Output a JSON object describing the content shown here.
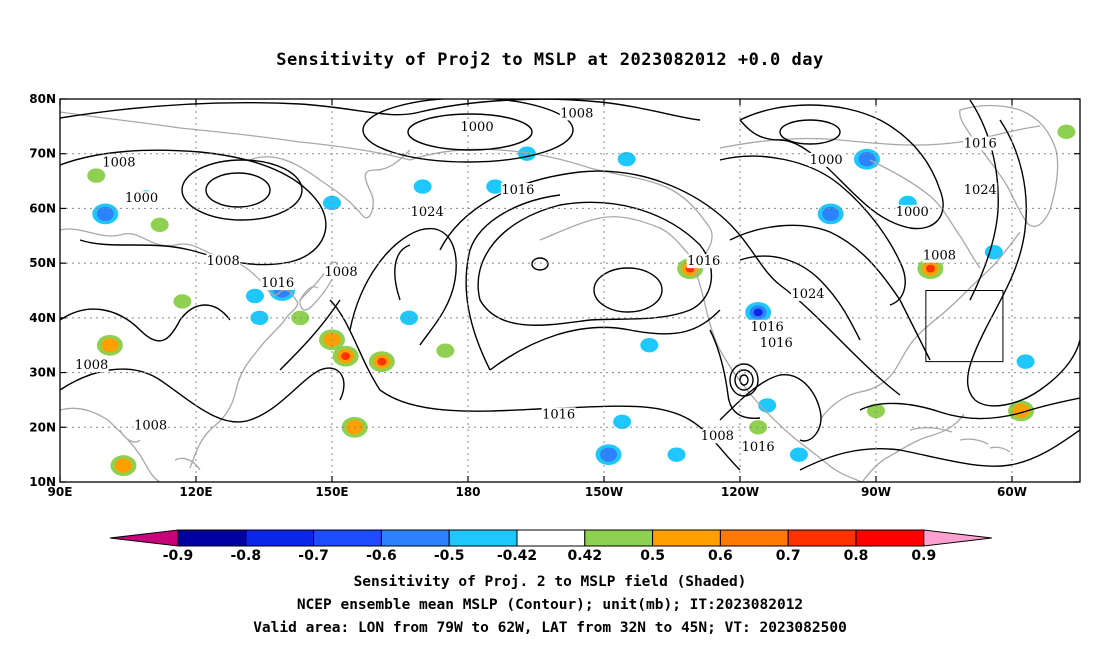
{
  "title": "Sensitivity of Proj2 to MSLP at 2023082012 +0.0 day",
  "map": {
    "lon_ticks": [
      {
        "lon": 90,
        "label": "90E"
      },
      {
        "lon": 120,
        "label": "120E"
      },
      {
        "lon": 150,
        "label": "150E"
      },
      {
        "lon": 180,
        "label": "180"
      },
      {
        "lon": 210,
        "label": "150W"
      },
      {
        "lon": 240,
        "label": "120W"
      },
      {
        "lon": 270,
        "label": "90W"
      },
      {
        "lon": 300,
        "label": "60W"
      }
    ],
    "lat_ticks": [
      {
        "lat": 10,
        "label": "10N"
      },
      {
        "lat": 20,
        "label": "20N"
      },
      {
        "lat": 30,
        "label": "30N"
      },
      {
        "lat": 40,
        "label": "40N"
      },
      {
        "lat": 50,
        "label": "50N"
      },
      {
        "lat": 60,
        "label": "60N"
      },
      {
        "lat": 70,
        "label": "70N"
      },
      {
        "lat": 80,
        "label": "80N"
      }
    ],
    "lon_range": [
      90,
      315
    ],
    "lat_range": [
      10,
      80
    ],
    "grid": "dotted",
    "valid_box": {
      "lon_min": 281,
      "lon_max": 298,
      "lat_min": 32,
      "lat_max": 45
    },
    "contour_labels": [
      {
        "text": "1000",
        "lon": 182,
        "lat": 74.5
      },
      {
        "text": "1008",
        "lon": 204,
        "lat": 77
      },
      {
        "text": "1008",
        "lon": 103,
        "lat": 68
      },
      {
        "text": "1000",
        "lon": 108,
        "lat": 61.5
      },
      {
        "text": "1016",
        "lon": 191,
        "lat": 63
      },
      {
        "text": "1024",
        "lon": 171,
        "lat": 59
      },
      {
        "text": "1000",
        "lon": 259,
        "lat": 68.5
      },
      {
        "text": "1016",
        "lon": 293,
        "lat": 71.5
      },
      {
        "text": "1024",
        "lon": 293,
        "lat": 63
      },
      {
        "text": "1000",
        "lon": 278,
        "lat": 59
      },
      {
        "text": "1008",
        "lon": 126,
        "lat": 50
      },
      {
        "text": "1008",
        "lon": 152,
        "lat": 48
      },
      {
        "text": "1016",
        "lon": 138,
        "lat": 46
      },
      {
        "text": "1016",
        "lon": 232,
        "lat": 50
      },
      {
        "text": "1008",
        "lon": 284,
        "lat": 51
      },
      {
        "text": "1024",
        "lon": 255,
        "lat": 44
      },
      {
        "text": "1016",
        "lon": 246,
        "lat": 38
      },
      {
        "text": "1016",
        "lon": 248,
        "lat": 35
      },
      {
        "text": "1008",
        "lon": 97,
        "lat": 31
      },
      {
        "text": "1016",
        "lon": 200,
        "lat": 22
      },
      {
        "text": "1008",
        "lon": 235,
        "lat": 18
      },
      {
        "text": "1008",
        "lon": 110,
        "lat": 20
      },
      {
        "text": "1016",
        "lon": 244,
        "lat": 16
      }
    ],
    "shaded_regions": [
      {
        "lon": 100,
        "lat": 59,
        "value": -0.6
      },
      {
        "lon": 109,
        "lat": 62,
        "value": -0.5
      },
      {
        "lon": 150,
        "lat": 61,
        "value": -0.5
      },
      {
        "lon": 170,
        "lat": 64,
        "value": -0.5
      },
      {
        "lon": 186,
        "lat": 64,
        "value": -0.5
      },
      {
        "lon": 193,
        "lat": 70,
        "value": -0.5
      },
      {
        "lon": 215,
        "lat": 69,
        "value": -0.5
      },
      {
        "lon": 268,
        "lat": 69,
        "value": -0.6
      },
      {
        "lon": 260,
        "lat": 59,
        "value": -0.6
      },
      {
        "lon": 277,
        "lat": 61,
        "value": -0.5
      },
      {
        "lon": 139,
        "lat": 45,
        "value": -0.6
      },
      {
        "lon": 133,
        "lat": 44,
        "value": -0.5
      },
      {
        "lon": 134,
        "lat": 40,
        "value": -0.5
      },
      {
        "lon": 167,
        "lat": 40,
        "value": -0.5
      },
      {
        "lon": 244,
        "lat": 41,
        "value": -0.8
      },
      {
        "lon": 220,
        "lat": 35,
        "value": -0.5
      },
      {
        "lon": 214,
        "lat": 21,
        "value": -0.5
      },
      {
        "lon": 211,
        "lat": 15,
        "value": -0.6
      },
      {
        "lon": 226,
        "lat": 15,
        "value": -0.5
      },
      {
        "lon": 246,
        "lat": 24,
        "value": -0.5
      },
      {
        "lon": 253,
        "lat": 15,
        "value": -0.5
      },
      {
        "lon": 296,
        "lat": 52,
        "value": -0.5
      },
      {
        "lon": 303,
        "lat": 32,
        "value": -0.5
      },
      {
        "lon": 101,
        "lat": 35,
        "value": 0.6
      },
      {
        "lon": 104,
        "lat": 13,
        "value": 0.6
      },
      {
        "lon": 150,
        "lat": 36,
        "value": 0.6
      },
      {
        "lon": 153,
        "lat": 33,
        "value": 0.7
      },
      {
        "lon": 161,
        "lat": 32,
        "value": 0.7
      },
      {
        "lon": 155,
        "lat": 20,
        "value": 0.6
      },
      {
        "lon": 229,
        "lat": 49,
        "value": 0.7
      },
      {
        "lon": 282,
        "lat": 49,
        "value": 0.7
      },
      {
        "lon": 302,
        "lat": 23,
        "value": 0.6
      },
      {
        "lon": 143,
        "lat": 40,
        "value": 0.5
      },
      {
        "lon": 175,
        "lat": 34,
        "value": 0.5
      },
      {
        "lon": 117,
        "lat": 43,
        "value": 0.5
      },
      {
        "lon": 112,
        "lat": 57,
        "value": 0.5
      },
      {
        "lon": 270,
        "lat": 23,
        "value": 0.5
      },
      {
        "lon": 312,
        "lat": 74,
        "value": 0.5
      },
      {
        "lon": 98,
        "lat": 66,
        "value": 0.5
      },
      {
        "lon": 244,
        "lat": 20,
        "value": 0.5
      }
    ]
  },
  "colorbar": {
    "colors": [
      "#c8007a",
      "#0000a0",
      "#0b26e8",
      "#1e4cff",
      "#2d82ff",
      "#1ec8ff",
      "#ffffff",
      "#90d050",
      "#ffa000",
      "#ff7800",
      "#ff3200",
      "#ff0000",
      "#ffa0d0"
    ],
    "labels": [
      "-0.9",
      "-0.8",
      "-0.7",
      "-0.6",
      "-0.5",
      "-0.42",
      "0.42",
      "0.5",
      "0.6",
      "0.7",
      "0.8",
      "0.9"
    ]
  },
  "caption": {
    "line1": "Sensitivity of Proj. 2 to MSLP field (Shaded)",
    "line2": "NCEP ensemble mean MSLP (Contour); unit(mb); IT:2023082012",
    "line3": "Valid area: LON from 79W to 62W, LAT from 32N to 45N; VT: 2023082500"
  }
}
